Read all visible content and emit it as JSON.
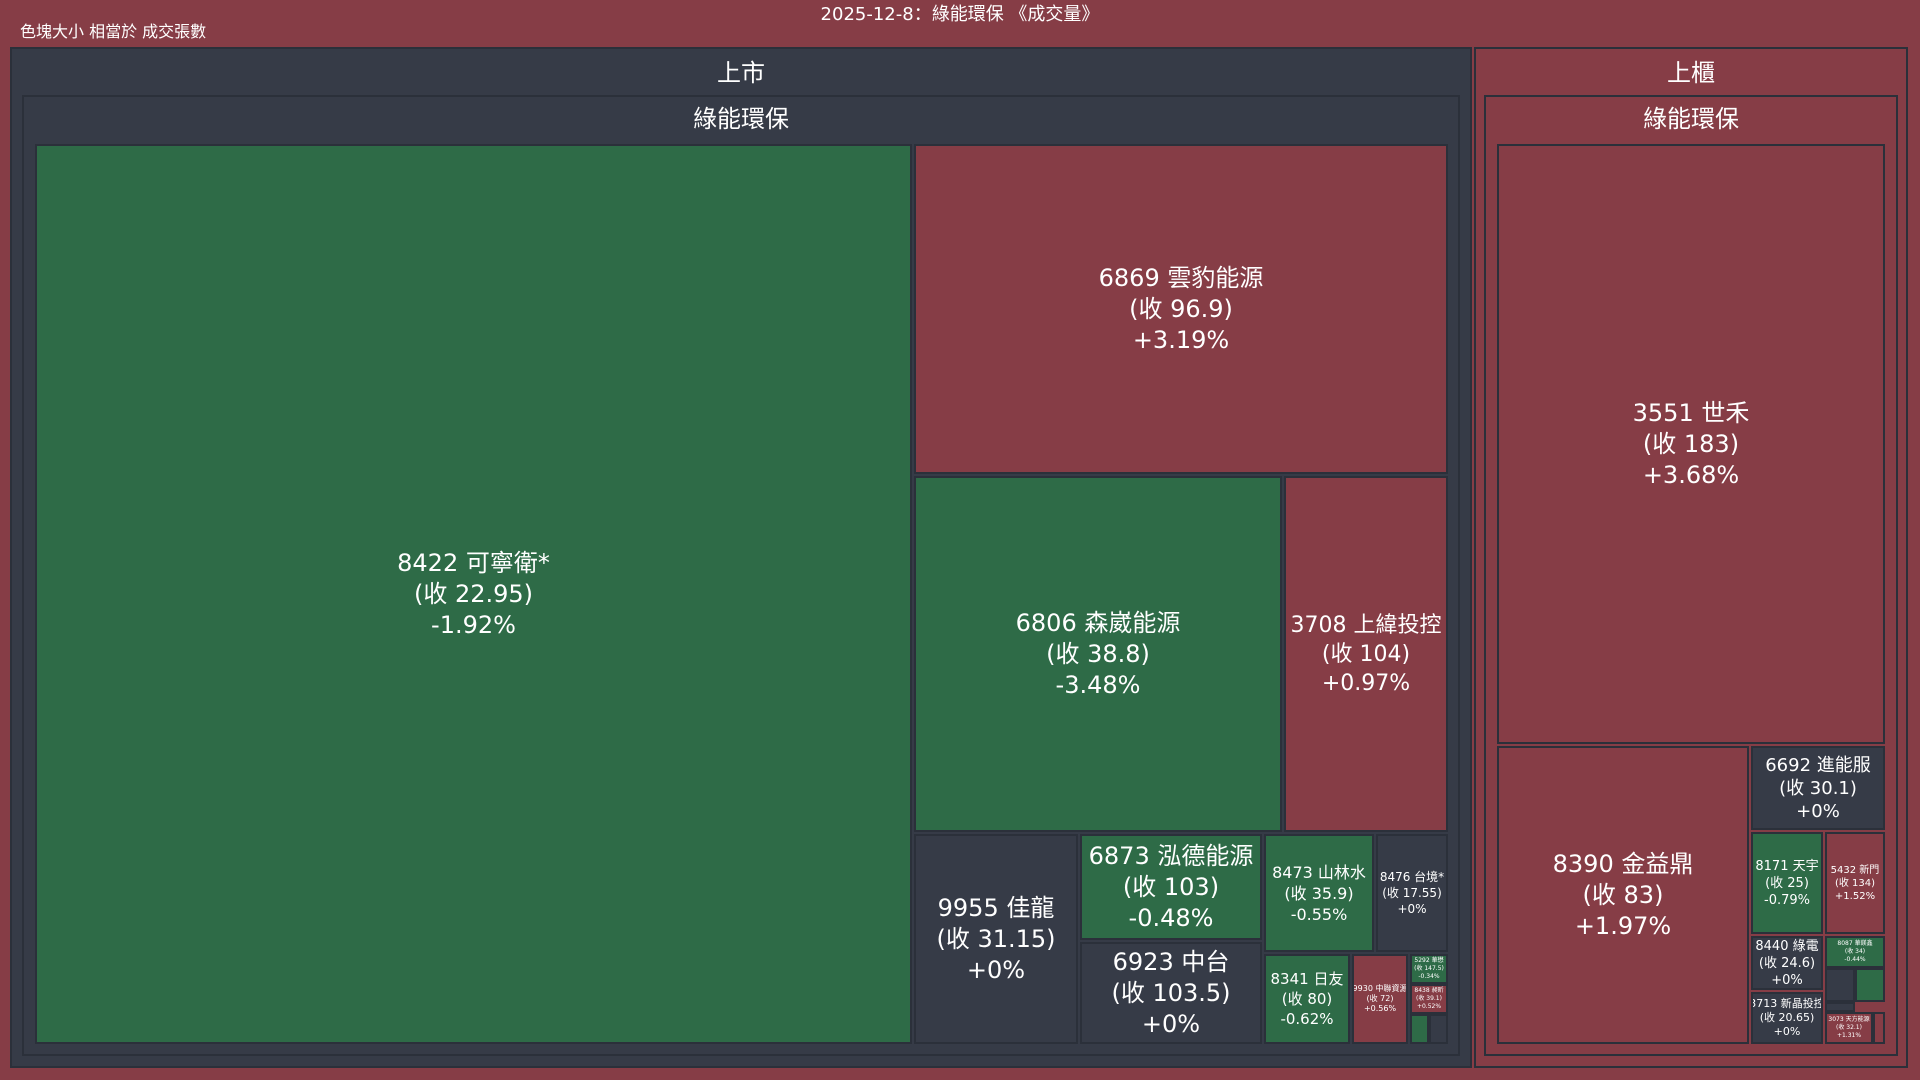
{
  "title": "2025-12-8：綠能環保 《成交量》",
  "size_note": "色塊大小 相當於 成交張數",
  "colors": {
    "up": "#863d46",
    "down": "#2e6b47",
    "flat": "#363b47",
    "frame": "#2b303a"
  },
  "chart_data": {
    "type": "treemap",
    "title": "2025-12-8：綠能環保 《成交量》",
    "size_metric": "成交張數",
    "markets": [
      {
        "name": "上市",
        "sectors": [
          {
            "name": "綠能環保",
            "stocks": [
              {
                "code": "8422",
                "name": "可寧衛*",
                "close": "22.95",
                "change": "-1.92%"
              },
              {
                "code": "6869",
                "name": "雲豹能源",
                "close": "96.9",
                "change": "+3.19%"
              },
              {
                "code": "6806",
                "name": "森崴能源",
                "close": "38.8",
                "change": "-3.48%"
              },
              {
                "code": "3708",
                "name": "上緯投控",
                "close": "104",
                "change": "+0.97%"
              },
              {
                "code": "9955",
                "name": "佳龍",
                "close": "31.15",
                "change": "+0%"
              },
              {
                "code": "6873",
                "name": "泓德能源",
                "close": "103",
                "change": "-0.48%"
              },
              {
                "code": "6923",
                "name": "中台",
                "close": "103.5",
                "change": "+0%"
              },
              {
                "code": "8473",
                "name": "山林水",
                "close": "35.9",
                "change": "-0.55%"
              },
              {
                "code": "8476",
                "name": "台境*",
                "close": "17.55",
                "change": "+0%"
              },
              {
                "code": "8341",
                "name": "日友",
                "close": "80",
                "change": "-0.62%"
              },
              {
                "code": "9930",
                "name": "中聯資源",
                "close": "72",
                "change": "+0.56%"
              },
              {
                "code": "5292",
                "name": "華懋",
                "close": "147.5",
                "change": "-0.34%"
              },
              {
                "code": "8438",
                "name": "昶昕",
                "close": "39.1",
                "change": "+0.52%"
              },
              {
                "code": "",
                "name": "",
                "close": "",
                "change": ""
              },
              {
                "code": "",
                "name": "",
                "close": "",
                "change": ""
              }
            ]
          }
        ]
      },
      {
        "name": "上櫃",
        "sectors": [
          {
            "name": "綠能環保",
            "stocks": [
              {
                "code": "3551",
                "name": "世禾",
                "close": "183",
                "change": "+3.68%"
              },
              {
                "code": "8390",
                "name": "金益鼎",
                "close": "83",
                "change": "+1.97%"
              },
              {
                "code": "6692",
                "name": "進能服",
                "close": "30.1",
                "change": "+0%"
              },
              {
                "code": "8171",
                "name": "天宇",
                "close": "25",
                "change": "-0.79%"
              },
              {
                "code": "5432",
                "name": "新門",
                "close": "134",
                "change": "+1.52%"
              },
              {
                "code": "8440",
                "name": "綠電",
                "close": "24.6",
                "change": "+0%"
              },
              {
                "code": "8087",
                "name": "華鎂鑫",
                "close": "34",
                "change": "-0.44%"
              },
              {
                "code": "3713",
                "name": "新晶投控",
                "close": "20.65",
                "change": "+0%"
              },
              {
                "code": "",
                "name": "",
                "close": "",
                "change": ""
              },
              {
                "code": "",
                "name": "",
                "close": "",
                "change": ""
              },
              {
                "code": "",
                "name": "",
                "close": "",
                "change": ""
              },
              {
                "code": "3073",
                "name": "天方能源",
                "close": "32.1",
                "change": "+1.31%"
              },
              {
                "code": "",
                "name": "",
                "close": "",
                "change": ""
              }
            ]
          }
        ]
      }
    ]
  }
}
